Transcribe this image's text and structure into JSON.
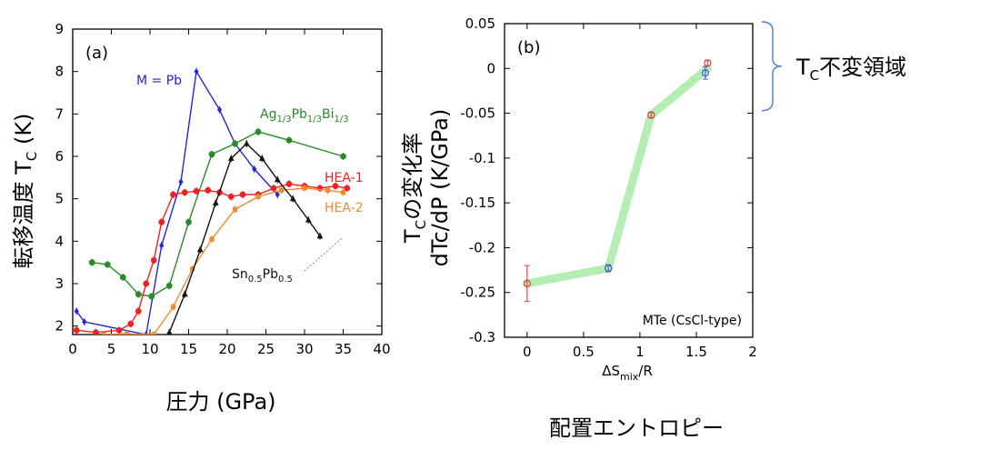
{
  "chart_data": [
    {
      "panel": "(a)",
      "type": "line",
      "xlabel": "圧力 (GPa)",
      "ylabel": "転移温度 T",
      "ylabel_sub": "C",
      "ylabel_suffix": " (K)",
      "xlim": [
        0,
        40
      ],
      "ylim": [
        1.8,
        9
      ],
      "xticks": [
        0,
        5,
        10,
        15,
        20,
        25,
        30,
        35,
        40
      ],
      "yticks": [
        2,
        3,
        4,
        5,
        6,
        7,
        8,
        9
      ],
      "series": [
        {
          "name": "M = Pb",
          "color": "#2424d8",
          "x": [
            0.5,
            1.5,
            9.5,
            11.5,
            14,
            16,
            19,
            21,
            23.5,
            26.5
          ],
          "y": [
            2.35,
            2.1,
            1.8,
            3.9,
            5.4,
            8.0,
            7.1,
            6.3,
            5.7,
            5.1
          ],
          "label": {
            "parts": [
              {
                "t": "M = Pb"
              }
            ]
          }
        },
        {
          "name": "Ag1/3Pb1/3Bi1/3",
          "color": "#2a8a2a",
          "x": [
            2.5,
            4.5,
            6.5,
            8.5,
            10.2,
            12.5,
            15,
            18,
            21,
            24,
            28,
            35
          ],
          "y": [
            3.5,
            3.45,
            3.15,
            2.75,
            2.7,
            2.95,
            4.45,
            6.05,
            6.3,
            6.58,
            6.38,
            6.0
          ],
          "label": {
            "parts": [
              {
                "t": "Ag"
              },
              {
                "t": "1/3",
                "sub": true
              },
              {
                "t": "Pb"
              },
              {
                "t": "1/3",
                "sub": true
              },
              {
                "t": "Bi"
              },
              {
                "t": "1/3",
                "sub": true
              }
            ]
          }
        },
        {
          "name": "HEA-1",
          "color": "#ee2222",
          "x": [
            0.5,
            3,
            6,
            7.5,
            8.5,
            9.5,
            10.5,
            11.5,
            13,
            14.5,
            16,
            17.5,
            19,
            20.5,
            22,
            24,
            26,
            28,
            30,
            32,
            34,
            35.5
          ],
          "y": [
            1.9,
            1.85,
            1.9,
            2.05,
            2.35,
            3.0,
            3.55,
            4.45,
            5.1,
            5.15,
            5.18,
            5.2,
            5.15,
            5.05,
            5.1,
            5.1,
            5.25,
            5.35,
            5.3,
            5.25,
            5.3,
            5.25
          ],
          "label": {
            "parts": [
              {
                "t": "HEA-1"
              }
            ]
          }
        },
        {
          "name": "HEA-2",
          "color": "#f28a2e",
          "x": [
            4,
            7,
            10.5,
            13,
            15.5,
            18,
            21,
            24,
            27,
            30,
            33,
            35
          ],
          "y": [
            1.8,
            1.82,
            1.8,
            2.45,
            3.35,
            4.05,
            4.75,
            5.05,
            5.2,
            5.25,
            5.2,
            5.15
          ],
          "label": {
            "parts": [
              {
                "t": "HEA-2"
              }
            ]
          }
        },
        {
          "name": "Sn0.5Pb0.5",
          "color": "#111111",
          "x": [
            12.5,
            14.5,
            16.5,
            18.5,
            20.5,
            22.5,
            24.5,
            26.5,
            28.5,
            30.5,
            32
          ],
          "y": [
            1.85,
            2.75,
            3.8,
            4.9,
            5.95,
            6.3,
            5.95,
            5.45,
            5.0,
            4.5,
            4.12
          ],
          "label": {
            "parts": [
              {
                "t": "Sn"
              },
              {
                "t": "0.5",
                "sub": true
              },
              {
                "t": "Pb"
              },
              {
                "t": "0.5",
                "sub": true
              }
            ]
          }
        }
      ]
    },
    {
      "panel": "(b)",
      "type": "line",
      "xlabel": "ΔS",
      "xlabel_sub": "mix",
      "xlabel_suffix": "/R",
      "xlabel_caption": "配置エントロピー",
      "ylabel_line1": "T",
      "ylabel_line1_sub": "C",
      "ylabel_line1_suffix": "の変化率",
      "ylabel_line2": "dTc/dP (K/GPa)",
      "xlim": [
        -0.2,
        2
      ],
      "ylim": [
        -0.3,
        0.05
      ],
      "xticks": [
        0,
        0.5,
        1,
        1.5,
        2
      ],
      "xtick_labels": [
        "0",
        "0.5",
        "1",
        "1.5",
        "2"
      ],
      "yticks": [
        0.05,
        0,
        -0.05,
        -0.1,
        -0.15,
        -0.2,
        -0.25,
        -0.3
      ],
      "ytick_labels": [
        "0.05",
        "0",
        "-0.05",
        "-0.1",
        "-0.15",
        "-0.2",
        "-0.25",
        "-0.3"
      ],
      "annotation": "MTe (CsCl-type)",
      "band_label": "T",
      "band_label_sub": "C",
      "band_label_suffix": "不変領域",
      "band_range": [
        -0.045,
        0.05
      ],
      "trend_color": "#b4eeb4",
      "series": [
        {
          "x": 0,
          "y": -0.24,
          "err": 0.02,
          "color": "#e04848"
        },
        {
          "x": 0.72,
          "y": -0.223,
          "err": 0.004,
          "color": "#4a5fd0"
        },
        {
          "x": 1.1,
          "y": -0.052,
          "err": 0.002,
          "color": "#c94a3a"
        },
        {
          "x": 1.58,
          "y": -0.005,
          "err": 0.007,
          "color": "#4a5fd0"
        },
        {
          "x": 1.6,
          "y": 0.006,
          "err": 0.002,
          "color": "#e04848"
        }
      ],
      "trend": {
        "x": [
          0,
          0.72,
          1.1,
          1.6
        ],
        "y": [
          -0.24,
          -0.223,
          -0.052,
          0.0
        ]
      }
    }
  ]
}
